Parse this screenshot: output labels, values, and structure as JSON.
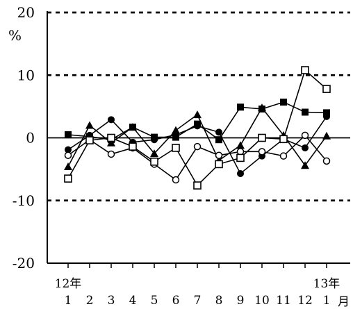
{
  "chart_data": {
    "type": "line",
    "title": "",
    "ylabel": "%",
    "xlabel": "月",
    "ylim": [
      -20,
      20
    ],
    "yticks": [
      -20,
      -10,
      0,
      10,
      20
    ],
    "categories": [
      "1",
      "2",
      "3",
      "4",
      "5",
      "6",
      "7",
      "8",
      "9",
      "10",
      "11",
      "12",
      "1"
    ],
    "year_labels": [
      {
        "text": "12年",
        "at_index": 0
      },
      {
        "text": "13年",
        "at_index": 12
      }
    ],
    "grid": "dashed horizontal lines at 10, -10 and top border at 20; solid zero line",
    "series": [
      {
        "marker": "filled-square",
        "values": [
          0.5,
          0.2,
          -0.3,
          1.7,
          0.1,
          0.1,
          2.2,
          -0.3,
          4.9,
          4.6,
          5.7,
          4.1,
          4.0
        ]
      },
      {
        "marker": "filled-triangle",
        "values": [
          -4.6,
          2.0,
          -0.8,
          1.7,
          -2.5,
          1.2,
          3.7,
          -3.6,
          -1.2,
          4.8,
          0.4,
          -4.4,
          0.3
        ]
      },
      {
        "marker": "filled-circle",
        "values": [
          -1.9,
          0.4,
          2.9,
          -0.7,
          -0.3,
          0.5,
          1.9,
          0.9,
          -5.7,
          -2.9,
          -0.2,
          -1.6,
          3.4
        ]
      },
      {
        "marker": "open-circle",
        "values": [
          -2.8,
          -0.3,
          -2.6,
          -1.6,
          -4.2,
          -6.7,
          -1.4,
          -2.8,
          -2.2,
          -2.2,
          -2.9,
          0.4,
          -3.7
        ]
      },
      {
        "marker": "open-square",
        "values": [
          -6.5,
          -0.4,
          0.0,
          -1.4,
          -3.8,
          -1.6,
          -7.6,
          -4.2,
          -3.2,
          0.0,
          -0.2,
          10.8,
          7.8
        ]
      }
    ]
  }
}
